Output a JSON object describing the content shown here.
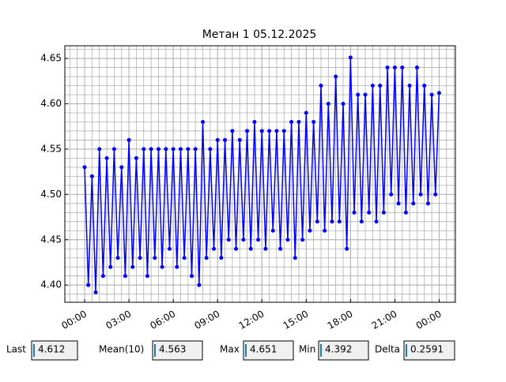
{
  "chart_data": {
    "type": "line",
    "title": "Метан 1 05.12.2025",
    "x": [
      0,
      0.25,
      0.5,
      0.75,
      1,
      1.25,
      1.5,
      1.75,
      2,
      2.25,
      2.5,
      2.75,
      3,
      3.25,
      3.5,
      3.75,
      4,
      4.25,
      4.5,
      4.75,
      5,
      5.25,
      5.5,
      5.75,
      6,
      6.25,
      6.5,
      6.75,
      7,
      7.25,
      7.5,
      7.75,
      8,
      8.25,
      8.5,
      8.75,
      9,
      9.25,
      9.5,
      9.75,
      10,
      10.25,
      10.5,
      10.75,
      11,
      11.25,
      11.5,
      11.75,
      12,
      12.25,
      12.5,
      12.75,
      13,
      13.25,
      13.5,
      13.75,
      14,
      14.25,
      14.5,
      14.75,
      15,
      15.25,
      15.5,
      15.75,
      16,
      16.25,
      16.5,
      16.75,
      17,
      17.25,
      17.5,
      17.75,
      18,
      18.25,
      18.5,
      18.75,
      19,
      19.25,
      19.5,
      19.75,
      20,
      20.25,
      20.5,
      20.75,
      21,
      21.25,
      21.5,
      21.75,
      22,
      22.25,
      22.5,
      22.75,
      23,
      23.25,
      23.5,
      23.75,
      24
    ],
    "series": [
      {
        "color": "#0000ff",
        "values": [
          4.53,
          4.4,
          4.52,
          4.392,
          4.55,
          4.41,
          4.54,
          4.42,
          4.55,
          4.43,
          4.53,
          4.41,
          4.56,
          4.42,
          4.54,
          4.43,
          4.55,
          4.41,
          4.55,
          4.43,
          4.55,
          4.42,
          4.55,
          4.44,
          4.55,
          4.42,
          4.55,
          4.43,
          4.55,
          4.41,
          4.55,
          4.4,
          4.58,
          4.43,
          4.55,
          4.44,
          4.56,
          4.43,
          4.56,
          4.45,
          4.57,
          4.44,
          4.56,
          4.45,
          4.57,
          4.44,
          4.58,
          4.45,
          4.57,
          4.44,
          4.57,
          4.46,
          4.57,
          4.44,
          4.57,
          4.45,
          4.58,
          4.43,
          4.58,
          4.45,
          4.59,
          4.46,
          4.58,
          4.47,
          4.62,
          4.46,
          4.6,
          4.47,
          4.63,
          4.47,
          4.6,
          4.44,
          4.651,
          4.48,
          4.61,
          4.47,
          4.61,
          4.48,
          4.62,
          4.47,
          4.62,
          4.48,
          4.64,
          4.5,
          4.64,
          4.49,
          4.64,
          4.48,
          4.62,
          4.49,
          4.64,
          4.5,
          4.62,
          4.49,
          4.61,
          4.5,
          4.612
        ]
      }
    ],
    "xlim": [
      -1.34,
      25.1
    ],
    "xticks": [
      {
        "value": 0,
        "label": "00:00"
      },
      {
        "value": 3,
        "label": "03:00"
      },
      {
        "value": 6,
        "label": "06:00"
      },
      {
        "value": 9,
        "label": "09:00"
      },
      {
        "value": 12,
        "label": "12:00"
      },
      {
        "value": 15,
        "label": "15:00"
      },
      {
        "value": 18,
        "label": "18:00"
      },
      {
        "value": 21,
        "label": "21:00"
      },
      {
        "value": 24,
        "label": "00:00"
      }
    ],
    "ylim": [
      4.381,
      4.664
    ],
    "yticks": [
      {
        "value": 4.4,
        "label": "4.40"
      },
      {
        "value": 4.45,
        "label": "4.45"
      },
      {
        "value": 4.5,
        "label": "4.50"
      },
      {
        "value": 4.55,
        "label": "4.55"
      },
      {
        "value": 4.6,
        "label": "4.60"
      },
      {
        "value": 4.65,
        "label": "4.65"
      }
    ],
    "grid": true,
    "minor_x_divisions": 6,
    "minor_y_divisions": 5
  },
  "stats": [
    {
      "label": "Last",
      "value": "4.612"
    },
    {
      "label": "Mean(10)",
      "value": "4.563"
    },
    {
      "label": "Max",
      "value": "4.651"
    },
    {
      "label": "Min",
      "value": "4.392"
    },
    {
      "label": "Delta",
      "value": "0.2591"
    }
  ]
}
